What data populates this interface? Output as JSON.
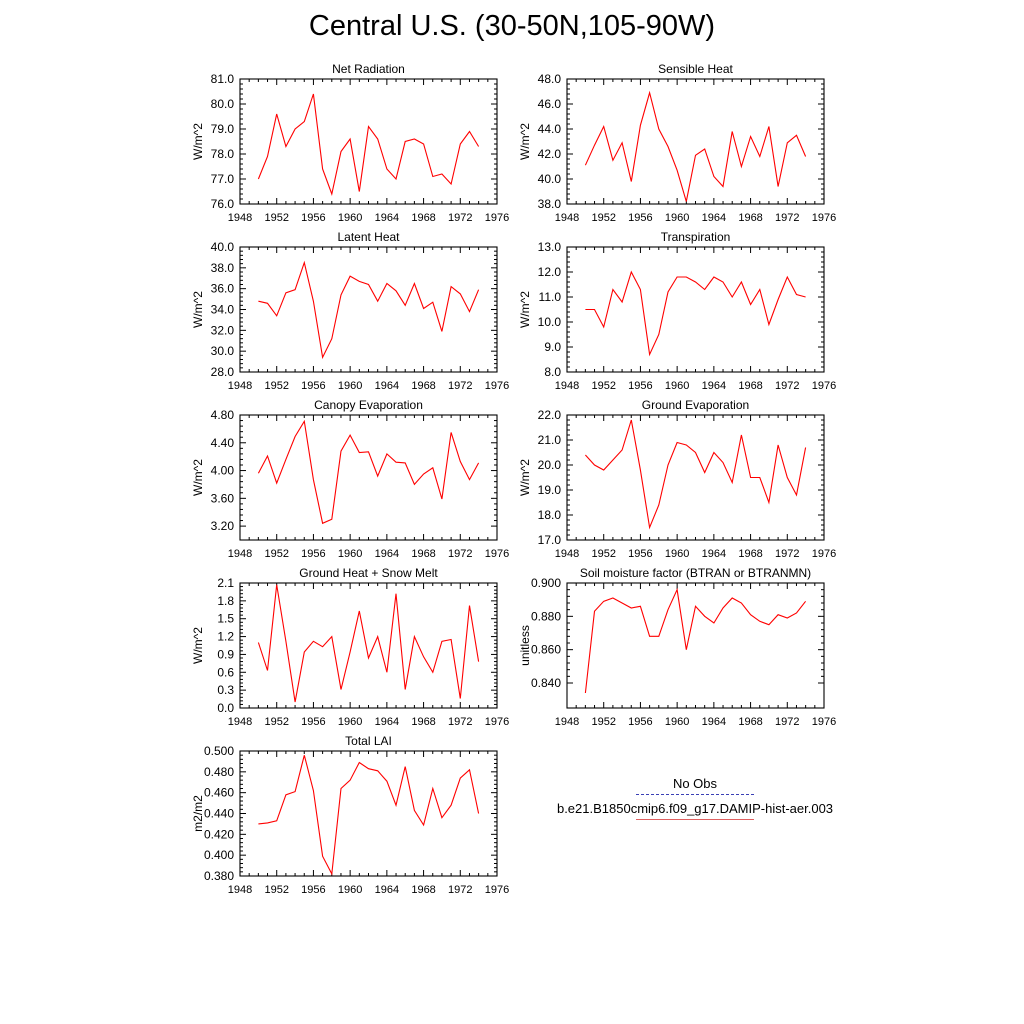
{
  "title": "Central U.S. (30-50N,105-90W)",
  "legend": {
    "obs_label": "No Obs",
    "model_label": "b.e21.B1850cmip6.f09_g17.DAMIP-hist-aer.003",
    "obs_color": "#3a3fb5",
    "model_color": "#e06060"
  },
  "line_color": "#ff0000",
  "chart_data": [
    {
      "type": "line",
      "title": "Net Radiation",
      "ylabel": "W/m^2",
      "xlim": [
        1948,
        1976
      ],
      "xticks": [
        1948,
        1952,
        1956,
        1960,
        1964,
        1968,
        1972,
        1976
      ],
      "ylim": [
        76,
        81
      ],
      "yticks": [
        "76.0",
        "77.0",
        "78.0",
        "79.0",
        "80.0",
        "81.0"
      ],
      "x": [
        1950,
        1951,
        1952,
        1953,
        1954,
        1955,
        1956,
        1957,
        1958,
        1959,
        1960,
        1961,
        1962,
        1963,
        1964,
        1965,
        1966,
        1967,
        1968,
        1969,
        1970,
        1971,
        1972,
        1973,
        1974
      ],
      "y": [
        77.0,
        77.9,
        79.6,
        78.3,
        79.0,
        79.3,
        80.4,
        77.4,
        76.4,
        78.1,
        78.6,
        76.5,
        79.1,
        78.6,
        77.4,
        77.0,
        78.5,
        78.6,
        78.4,
        77.1,
        77.2,
        76.8,
        78.4,
        78.9,
        78.3
      ]
    },
    {
      "type": "line",
      "title": "Sensible Heat",
      "ylabel": "W/m^2",
      "xlim": [
        1948,
        1976
      ],
      "xticks": [
        1948,
        1952,
        1956,
        1960,
        1964,
        1968,
        1972,
        1976
      ],
      "ylim": [
        38,
        48
      ],
      "yticks": [
        "38.0",
        "40.0",
        "42.0",
        "44.0",
        "46.0",
        "48.0"
      ],
      "x": [
        1950,
        1951,
        1952,
        1953,
        1954,
        1955,
        1956,
        1957,
        1958,
        1959,
        1960,
        1961,
        1962,
        1963,
        1964,
        1965,
        1966,
        1967,
        1968,
        1969,
        1970,
        1971,
        1972,
        1973,
        1974
      ],
      "y": [
        41.1,
        42.7,
        44.2,
        41.5,
        42.9,
        39.8,
        44.3,
        46.9,
        44.0,
        42.6,
        40.7,
        38.2,
        41.9,
        42.4,
        40.2,
        39.4,
        43.8,
        41.0,
        43.4,
        41.8,
        44.2,
        39.4,
        42.9,
        43.5,
        41.8
      ]
    },
    {
      "type": "line",
      "title": "Latent Heat",
      "ylabel": "W/m^2",
      "xlim": [
        1948,
        1976
      ],
      "xticks": [
        1948,
        1952,
        1956,
        1960,
        1964,
        1968,
        1972,
        1976
      ],
      "ylim": [
        28,
        40
      ],
      "yticks": [
        "28.0",
        "30.0",
        "32.0",
        "34.0",
        "36.0",
        "38.0",
        "40.0"
      ],
      "x": [
        1950,
        1951,
        1952,
        1953,
        1954,
        1955,
        1956,
        1957,
        1958,
        1959,
        1960,
        1961,
        1962,
        1963,
        1964,
        1965,
        1966,
        1967,
        1968,
        1969,
        1970,
        1971,
        1972,
        1973,
        1974
      ],
      "y": [
        34.8,
        34.6,
        33.4,
        35.6,
        35.9,
        38.5,
        34.8,
        29.4,
        31.2,
        35.4,
        37.2,
        36.7,
        36.4,
        34.8,
        36.5,
        35.8,
        34.4,
        36.5,
        34.1,
        34.7,
        31.9,
        36.2,
        35.5,
        33.8,
        35.9
      ]
    },
    {
      "type": "line",
      "title": "Transpiration",
      "ylabel": "W/m^2",
      "xlim": [
        1948,
        1976
      ],
      "xticks": [
        1948,
        1952,
        1956,
        1960,
        1964,
        1968,
        1972,
        1976
      ],
      "ylim": [
        8,
        13
      ],
      "yticks": [
        "8.0",
        "9.0",
        "10.0",
        "11.0",
        "12.0",
        "13.0"
      ],
      "x": [
        1950,
        1951,
        1952,
        1953,
        1954,
        1955,
        1956,
        1957,
        1958,
        1959,
        1960,
        1961,
        1962,
        1963,
        1964,
        1965,
        1966,
        1967,
        1968,
        1969,
        1970,
        1971,
        1972,
        1973,
        1974
      ],
      "y": [
        10.5,
        10.5,
        9.8,
        11.3,
        10.8,
        12.0,
        11.3,
        8.7,
        9.5,
        11.2,
        11.8,
        11.8,
        11.6,
        11.3,
        11.8,
        11.6,
        11.0,
        11.6,
        10.7,
        11.3,
        9.9,
        10.9,
        11.8,
        11.1,
        11.0
      ]
    },
    {
      "type": "line",
      "title": "Canopy Evaporation",
      "ylabel": "W/m^2",
      "xlim": [
        1948,
        1976
      ],
      "xticks": [
        1948,
        1952,
        1956,
        1960,
        1964,
        1968,
        1972,
        1976
      ],
      "ylim": [
        3.0,
        4.8
      ],
      "yticks": [
        "3.20",
        "3.60",
        "4.00",
        "4.40",
        "4.80"
      ],
      "ytick_values": [
        3.2,
        3.6,
        4.0,
        4.4,
        4.8
      ],
      "x": [
        1950,
        1951,
        1952,
        1953,
        1954,
        1955,
        1956,
        1957,
        1958,
        1959,
        1960,
        1961,
        1962,
        1963,
        1964,
        1965,
        1966,
        1967,
        1968,
        1969,
        1970,
        1971,
        1972,
        1973,
        1974
      ],
      "y": [
        3.96,
        4.21,
        3.82,
        4.16,
        4.49,
        4.71,
        3.87,
        3.24,
        3.3,
        4.28,
        4.51,
        4.26,
        4.27,
        3.92,
        4.24,
        4.12,
        4.11,
        3.8,
        3.95,
        4.04,
        3.59,
        4.55,
        4.13,
        3.87,
        4.11
      ]
    },
    {
      "type": "line",
      "title": "Ground Evaporation",
      "ylabel": "W/m^2",
      "xlim": [
        1948,
        1976
      ],
      "xticks": [
        1948,
        1952,
        1956,
        1960,
        1964,
        1968,
        1972,
        1976
      ],
      "ylim": [
        17,
        22
      ],
      "yticks": [
        "17.0",
        "18.0",
        "19.0",
        "20.0",
        "21.0",
        "22.0"
      ],
      "x": [
        1950,
        1951,
        1952,
        1953,
        1954,
        1955,
        1956,
        1957,
        1958,
        1959,
        1960,
        1961,
        1962,
        1963,
        1964,
        1965,
        1966,
        1967,
        1968,
        1969,
        1970,
        1971,
        1972,
        1973,
        1974
      ],
      "y": [
        20.4,
        20.0,
        19.8,
        20.2,
        20.6,
        21.8,
        19.8,
        17.5,
        18.4,
        20.0,
        20.9,
        20.8,
        20.5,
        19.7,
        20.5,
        20.1,
        19.3,
        21.2,
        19.5,
        19.5,
        18.5,
        20.8,
        19.5,
        18.8,
        20.7
      ]
    },
    {
      "type": "line",
      "title": "Ground Heat + Snow Melt",
      "ylabel": "W/m^2",
      "xlim": [
        1948,
        1976
      ],
      "xticks": [
        1948,
        1952,
        1956,
        1960,
        1964,
        1968,
        1972,
        1976
      ],
      "ylim": [
        0,
        2.1
      ],
      "yticks": [
        "0.0",
        "0.3",
        "0.6",
        "0.9",
        "1.2",
        "1.5",
        "1.8",
        "2.1"
      ],
      "x": [
        1950,
        1951,
        1952,
        1953,
        1954,
        1955,
        1956,
        1957,
        1958,
        1959,
        1960,
        1961,
        1962,
        1963,
        1964,
        1965,
        1966,
        1967,
        1968,
        1969,
        1970,
        1971,
        1972,
        1973,
        1974
      ],
      "y": [
        1.1,
        0.63,
        2.07,
        1.12,
        0.1,
        0.94,
        1.12,
        1.03,
        1.2,
        0.31,
        0.94,
        1.63,
        0.84,
        1.2,
        0.6,
        1.92,
        0.31,
        1.2,
        0.86,
        0.6,
        1.12,
        1.15,
        0.16,
        1.72,
        0.78
      ]
    },
    {
      "type": "line",
      "title": "Soil moisture factor (BTRAN or BTRANMN)",
      "ylabel": "unitless",
      "xlim": [
        1948,
        1976
      ],
      "xticks": [
        1948,
        1952,
        1956,
        1960,
        1964,
        1968,
        1972,
        1976
      ],
      "ylim": [
        0.825,
        0.9
      ],
      "yticks": [
        "0.840",
        "0.860",
        "0.880",
        "0.900"
      ],
      "ytick_values": [
        0.84,
        0.86,
        0.88,
        0.9
      ],
      "x": [
        1950,
        1951,
        1952,
        1953,
        1954,
        1955,
        1956,
        1957,
        1958,
        1959,
        1960,
        1961,
        1962,
        1963,
        1964,
        1965,
        1966,
        1967,
        1968,
        1969,
        1970,
        1971,
        1972,
        1973,
        1974
      ],
      "y": [
        0.834,
        0.883,
        0.889,
        0.891,
        0.888,
        0.885,
        0.886,
        0.868,
        0.868,
        0.884,
        0.896,
        0.86,
        0.886,
        0.88,
        0.876,
        0.885,
        0.891,
        0.888,
        0.881,
        0.877,
        0.875,
        0.881,
        0.879,
        0.882,
        0.889
      ]
    },
    {
      "type": "line",
      "title": "Total LAI",
      "ylabel": "m2/m2",
      "xlim": [
        1948,
        1976
      ],
      "xticks": [
        1948,
        1952,
        1956,
        1960,
        1964,
        1968,
        1972,
        1976
      ],
      "ylim": [
        0.38,
        0.5
      ],
      "yticks": [
        "0.380",
        "0.400",
        "0.420",
        "0.440",
        "0.460",
        "0.480",
        "0.500"
      ],
      "x": [
        1950,
        1951,
        1952,
        1953,
        1954,
        1955,
        1956,
        1957,
        1958,
        1959,
        1960,
        1961,
        1962,
        1963,
        1964,
        1965,
        1966,
        1967,
        1968,
        1969,
        1970,
        1971,
        1972,
        1973,
        1974
      ],
      "y": [
        0.43,
        0.431,
        0.433,
        0.458,
        0.461,
        0.496,
        0.462,
        0.399,
        0.382,
        0.464,
        0.472,
        0.489,
        0.483,
        0.481,
        0.471,
        0.448,
        0.485,
        0.443,
        0.429,
        0.464,
        0.436,
        0.448,
        0.474,
        0.482,
        0.44
      ]
    }
  ]
}
